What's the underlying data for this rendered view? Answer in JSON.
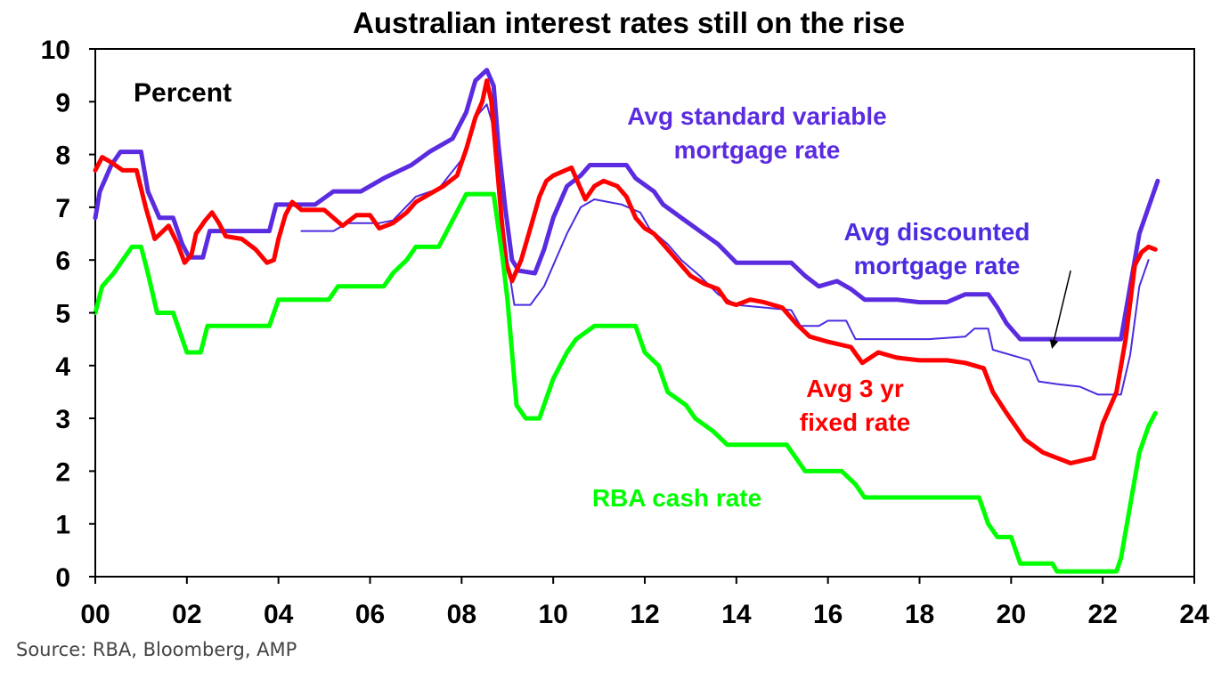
{
  "chart_data": {
    "type": "line",
    "title": "Australian interest rates still on the rise",
    "ylabel": "Percent",
    "xlabel": "",
    "xlim": [
      0,
      24
    ],
    "ylim": [
      0,
      10
    ],
    "x_ticks": [
      0,
      2,
      4,
      6,
      8,
      10,
      12,
      14,
      16,
      18,
      20,
      22,
      24
    ],
    "x_tick_labels": [
      "00",
      "02",
      "04",
      "06",
      "08",
      "10",
      "12",
      "14",
      "16",
      "18",
      "20",
      "22",
      "24"
    ],
    "y_ticks": [
      0,
      1,
      2,
      3,
      4,
      5,
      6,
      7,
      8,
      9,
      10
    ],
    "y_tick_labels": [
      "0",
      "1",
      "2",
      "3",
      "4",
      "5",
      "6",
      "7",
      "8",
      "9",
      "10"
    ],
    "series": [
      {
        "name": "Avg standard variable mortgage rate",
        "label_lines": [
          "Avg standard variable",
          "mortgage rate"
        ],
        "color": "#5b2be0",
        "style": "thick",
        "points": [
          [
            0,
            6.8
          ],
          [
            0.1,
            7.3
          ],
          [
            0.35,
            7.8
          ],
          [
            0.55,
            8.05
          ],
          [
            1.0,
            8.05
          ],
          [
            1.15,
            7.3
          ],
          [
            1.4,
            6.8
          ],
          [
            1.7,
            6.8
          ],
          [
            1.9,
            6.3
          ],
          [
            2.05,
            6.05
          ],
          [
            2.35,
            6.05
          ],
          [
            2.5,
            6.55
          ],
          [
            3.0,
            6.55
          ],
          [
            3.8,
            6.55
          ],
          [
            3.95,
            7.05
          ],
          [
            4.8,
            7.05
          ],
          [
            5.2,
            7.3
          ],
          [
            5.8,
            7.3
          ],
          [
            6.3,
            7.55
          ],
          [
            6.9,
            7.8
          ],
          [
            7.3,
            8.05
          ],
          [
            7.8,
            8.3
          ],
          [
            8.1,
            8.8
          ],
          [
            8.3,
            9.4
          ],
          [
            8.55,
            9.6
          ],
          [
            8.7,
            9.3
          ],
          [
            8.8,
            8.2
          ],
          [
            8.95,
            7.0
          ],
          [
            9.1,
            6.0
          ],
          [
            9.25,
            5.8
          ],
          [
            9.6,
            5.75
          ],
          [
            9.8,
            6.2
          ],
          [
            10.0,
            6.8
          ],
          [
            10.3,
            7.4
          ],
          [
            10.6,
            7.6
          ],
          [
            10.8,
            7.8
          ],
          [
            11.6,
            7.8
          ],
          [
            11.8,
            7.55
          ],
          [
            12.2,
            7.3
          ],
          [
            12.4,
            7.05
          ],
          [
            12.8,
            6.8
          ],
          [
            13.2,
            6.55
          ],
          [
            13.6,
            6.3
          ],
          [
            14.0,
            5.95
          ],
          [
            15.2,
            5.95
          ],
          [
            15.5,
            5.7
          ],
          [
            15.8,
            5.5
          ],
          [
            16.2,
            5.6
          ],
          [
            16.5,
            5.45
          ],
          [
            16.8,
            5.25
          ],
          [
            17.5,
            5.25
          ],
          [
            18.0,
            5.2
          ],
          [
            18.6,
            5.2
          ],
          [
            19.0,
            5.35
          ],
          [
            19.5,
            5.35
          ],
          [
            19.7,
            5.1
          ],
          [
            19.9,
            4.8
          ],
          [
            20.2,
            4.5
          ],
          [
            22.0,
            4.5
          ],
          [
            22.4,
            4.5
          ],
          [
            22.6,
            5.5
          ],
          [
            22.8,
            6.5
          ],
          [
            23.2,
            7.5
          ]
        ]
      },
      {
        "name": "Avg discounted mortgage rate",
        "label_lines": [
          "Avg discounted",
          "mortgage rate"
        ],
        "color": "#4d2be0",
        "style": "thin",
        "points": [
          [
            4.5,
            6.55
          ],
          [
            5.2,
            6.55
          ],
          [
            5.5,
            6.7
          ],
          [
            6.2,
            6.7
          ],
          [
            6.5,
            6.75
          ],
          [
            7.0,
            7.2
          ],
          [
            7.5,
            7.35
          ],
          [
            8.0,
            7.9
          ],
          [
            8.3,
            8.7
          ],
          [
            8.55,
            8.95
          ],
          [
            8.7,
            8.5
          ],
          [
            8.8,
            7.5
          ],
          [
            9.0,
            6.0
          ],
          [
            9.15,
            5.15
          ],
          [
            9.5,
            5.15
          ],
          [
            9.8,
            5.5
          ],
          [
            10.3,
            6.5
          ],
          [
            10.6,
            7.0
          ],
          [
            10.9,
            7.15
          ],
          [
            11.5,
            7.05
          ],
          [
            11.9,
            6.9
          ],
          [
            12.1,
            6.6
          ],
          [
            12.5,
            6.3
          ],
          [
            12.8,
            6.0
          ],
          [
            13.2,
            5.7
          ],
          [
            13.6,
            5.35
          ],
          [
            14.0,
            5.15
          ],
          [
            15.2,
            5.05
          ],
          [
            15.4,
            4.75
          ],
          [
            15.8,
            4.75
          ],
          [
            16.0,
            4.85
          ],
          [
            16.4,
            4.85
          ],
          [
            16.6,
            4.5
          ],
          [
            17.5,
            4.5
          ],
          [
            18.2,
            4.5
          ],
          [
            19.0,
            4.55
          ],
          [
            19.2,
            4.7
          ],
          [
            19.5,
            4.7
          ],
          [
            19.6,
            4.3
          ],
          [
            20.0,
            4.2
          ],
          [
            20.4,
            4.1
          ],
          [
            20.6,
            3.7
          ],
          [
            21.0,
            3.65
          ],
          [
            21.5,
            3.6
          ],
          [
            21.9,
            3.45
          ],
          [
            22.4,
            3.45
          ],
          [
            22.6,
            4.2
          ],
          [
            22.8,
            5.5
          ],
          [
            23.0,
            6.0
          ]
        ]
      },
      {
        "name": "Avg 3 yr fixed rate",
        "label_lines": [
          "Avg 3 yr",
          "fixed rate"
        ],
        "color": "#ff0000",
        "style": "thick",
        "points": [
          [
            0,
            7.7
          ],
          [
            0.15,
            7.95
          ],
          [
            0.35,
            7.85
          ],
          [
            0.6,
            7.7
          ],
          [
            0.9,
            7.7
          ],
          [
            1.1,
            7.0
          ],
          [
            1.3,
            6.4
          ],
          [
            1.6,
            6.65
          ],
          [
            1.8,
            6.3
          ],
          [
            1.95,
            5.95
          ],
          [
            2.1,
            6.1
          ],
          [
            2.2,
            6.5
          ],
          [
            2.4,
            6.75
          ],
          [
            2.55,
            6.9
          ],
          [
            2.7,
            6.7
          ],
          [
            2.85,
            6.45
          ],
          [
            3.2,
            6.4
          ],
          [
            3.5,
            6.2
          ],
          [
            3.75,
            5.95
          ],
          [
            3.9,
            6.0
          ],
          [
            4.0,
            6.4
          ],
          [
            4.15,
            6.85
          ],
          [
            4.3,
            7.1
          ],
          [
            4.5,
            6.95
          ],
          [
            5.0,
            6.95
          ],
          [
            5.4,
            6.65
          ],
          [
            5.7,
            6.85
          ],
          [
            6.0,
            6.85
          ],
          [
            6.2,
            6.6
          ],
          [
            6.5,
            6.7
          ],
          [
            6.8,
            6.9
          ],
          [
            7.0,
            7.1
          ],
          [
            7.3,
            7.25
          ],
          [
            7.6,
            7.4
          ],
          [
            7.9,
            7.6
          ],
          [
            8.1,
            8.1
          ],
          [
            8.3,
            8.7
          ],
          [
            8.45,
            9.0
          ],
          [
            8.55,
            9.4
          ],
          [
            8.65,
            9.0
          ],
          [
            8.8,
            7.5
          ],
          [
            8.95,
            6.0
          ],
          [
            9.1,
            5.6
          ],
          [
            9.3,
            6.0
          ],
          [
            9.5,
            6.6
          ],
          [
            9.7,
            7.2
          ],
          [
            9.85,
            7.5
          ],
          [
            10.0,
            7.6
          ],
          [
            10.4,
            7.75
          ],
          [
            10.55,
            7.45
          ],
          [
            10.7,
            7.15
          ],
          [
            10.9,
            7.4
          ],
          [
            11.1,
            7.5
          ],
          [
            11.4,
            7.4
          ],
          [
            11.6,
            7.2
          ],
          [
            11.8,
            6.8
          ],
          [
            12.0,
            6.6
          ],
          [
            12.2,
            6.5
          ],
          [
            12.4,
            6.3
          ],
          [
            12.6,
            6.1
          ],
          [
            12.8,
            5.9
          ],
          [
            13.0,
            5.7
          ],
          [
            13.3,
            5.55
          ],
          [
            13.6,
            5.45
          ],
          [
            13.8,
            5.2
          ],
          [
            14.0,
            5.15
          ],
          [
            14.3,
            5.25
          ],
          [
            14.6,
            5.2
          ],
          [
            15.0,
            5.1
          ],
          [
            15.3,
            4.8
          ],
          [
            15.6,
            4.55
          ],
          [
            16.0,
            4.45
          ],
          [
            16.5,
            4.35
          ],
          [
            16.75,
            4.05
          ],
          [
            17.1,
            4.25
          ],
          [
            17.5,
            4.15
          ],
          [
            18.0,
            4.1
          ],
          [
            18.6,
            4.1
          ],
          [
            19.0,
            4.05
          ],
          [
            19.4,
            3.95
          ],
          [
            19.6,
            3.5
          ],
          [
            19.9,
            3.1
          ],
          [
            20.3,
            2.6
          ],
          [
            20.7,
            2.35
          ],
          [
            21.0,
            2.25
          ],
          [
            21.3,
            2.15
          ],
          [
            21.8,
            2.25
          ],
          [
            22.0,
            2.9
          ],
          [
            22.3,
            3.5
          ],
          [
            22.5,
            4.5
          ],
          [
            22.7,
            5.9
          ],
          [
            22.85,
            6.15
          ],
          [
            23.0,
            6.25
          ],
          [
            23.15,
            6.2
          ]
        ]
      },
      {
        "name": "RBA cash rate",
        "label_lines": [
          "RBA cash rate"
        ],
        "color": "#00ff00",
        "style": "thick",
        "points": [
          [
            0,
            5.0
          ],
          [
            0.15,
            5.5
          ],
          [
            0.4,
            5.75
          ],
          [
            0.6,
            6.0
          ],
          [
            0.8,
            6.25
          ],
          [
            1.0,
            6.25
          ],
          [
            1.15,
            5.75
          ],
          [
            1.35,
            5.0
          ],
          [
            1.7,
            5.0
          ],
          [
            1.9,
            4.5
          ],
          [
            2.0,
            4.25
          ],
          [
            2.3,
            4.25
          ],
          [
            2.45,
            4.75
          ],
          [
            3.8,
            4.75
          ],
          [
            4.0,
            5.25
          ],
          [
            5.1,
            5.25
          ],
          [
            5.3,
            5.5
          ],
          [
            6.3,
            5.5
          ],
          [
            6.5,
            5.75
          ],
          [
            6.8,
            6.0
          ],
          [
            7.0,
            6.25
          ],
          [
            7.5,
            6.25
          ],
          [
            7.8,
            6.75
          ],
          [
            8.1,
            7.25
          ],
          [
            8.7,
            7.25
          ],
          [
            8.9,
            6.0
          ],
          [
            9.0,
            5.25
          ],
          [
            9.1,
            4.25
          ],
          [
            9.2,
            3.25
          ],
          [
            9.4,
            3.0
          ],
          [
            9.7,
            3.0
          ],
          [
            9.9,
            3.5
          ],
          [
            10.0,
            3.75
          ],
          [
            10.3,
            4.25
          ],
          [
            10.5,
            4.5
          ],
          [
            10.9,
            4.75
          ],
          [
            11.8,
            4.75
          ],
          [
            12.0,
            4.25
          ],
          [
            12.3,
            4.0
          ],
          [
            12.5,
            3.5
          ],
          [
            12.9,
            3.25
          ],
          [
            13.1,
            3.0
          ],
          [
            13.5,
            2.75
          ],
          [
            13.8,
            2.5
          ],
          [
            15.1,
            2.5
          ],
          [
            15.3,
            2.25
          ],
          [
            15.5,
            2.0
          ],
          [
            16.3,
            2.0
          ],
          [
            16.6,
            1.75
          ],
          [
            16.8,
            1.5
          ],
          [
            19.3,
            1.5
          ],
          [
            19.5,
            1.0
          ],
          [
            19.7,
            0.75
          ],
          [
            20.0,
            0.75
          ],
          [
            20.2,
            0.25
          ],
          [
            20.9,
            0.25
          ],
          [
            21.0,
            0.1
          ],
          [
            22.3,
            0.1
          ],
          [
            22.4,
            0.35
          ],
          [
            22.6,
            1.35
          ],
          [
            22.8,
            2.35
          ],
          [
            23.0,
            2.85
          ],
          [
            23.15,
            3.1
          ]
        ]
      }
    ],
    "annotations": [
      {
        "name": "discounted-rate-arrow",
        "from": [
          21.3,
          5.8
        ],
        "to": [
          20.9,
          4.35
        ]
      }
    ]
  },
  "source": "Source: RBA, Bloomberg, AMP"
}
